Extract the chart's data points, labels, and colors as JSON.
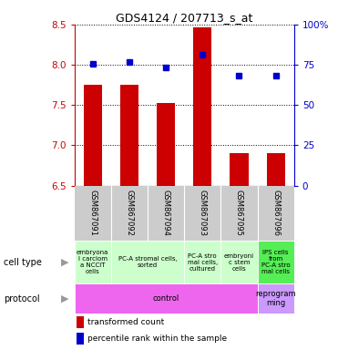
{
  "title": "GDS4124 / 207713_s_at",
  "samples": [
    "GSM867091",
    "GSM867092",
    "GSM867094",
    "GSM867093",
    "GSM867095",
    "GSM867096"
  ],
  "transformed_counts": [
    7.75,
    7.75,
    7.53,
    8.47,
    6.9,
    6.9
  ],
  "percentile_ranks": [
    75.5,
    76.5,
    73.5,
    81.5,
    68.5,
    68.5
  ],
  "ylim_left": [
    6.5,
    8.5
  ],
  "ylim_right": [
    0,
    100
  ],
  "yticks_left": [
    6.5,
    7.0,
    7.5,
    8.0,
    8.5
  ],
  "yticks_right": [
    0,
    25,
    50,
    75,
    100
  ],
  "bar_color": "#cc0000",
  "dot_color": "#0000cc",
  "bar_width": 0.5,
  "left_axis_color": "#cc0000",
  "right_axis_color": "#0000cc",
  "sample_bg": "#cccccc",
  "cell_groups": [
    {
      "label": "embryona\nl carciom\na NCCIT\ncells",
      "start": 0,
      "end": 1,
      "color": "#ccffcc"
    },
    {
      "label": "PC-A stromal cells,\nsorted",
      "start": 1,
      "end": 3,
      "color": "#ccffcc"
    },
    {
      "label": "PC-A stro\nmal cells,\ncultured",
      "start": 3,
      "end": 4,
      "color": "#ccffcc"
    },
    {
      "label": "embryoni\nc stem\ncells",
      "start": 4,
      "end": 5,
      "color": "#ccffcc"
    },
    {
      "label": "IPS cells\nfrom\nPC-A stro\nmal cells",
      "start": 5,
      "end": 6,
      "color": "#55ee55"
    }
  ],
  "prot_groups": [
    {
      "label": "control",
      "start": 0,
      "end": 5,
      "color": "#ee66ee"
    },
    {
      "label": "reprogram\nming",
      "start": 5,
      "end": 6,
      "color": "#cc99ff"
    }
  ],
  "legend": [
    {
      "color": "#cc0000",
      "label": "transformed count"
    },
    {
      "color": "#0000cc",
      "label": "percentile rank within the sample"
    }
  ]
}
